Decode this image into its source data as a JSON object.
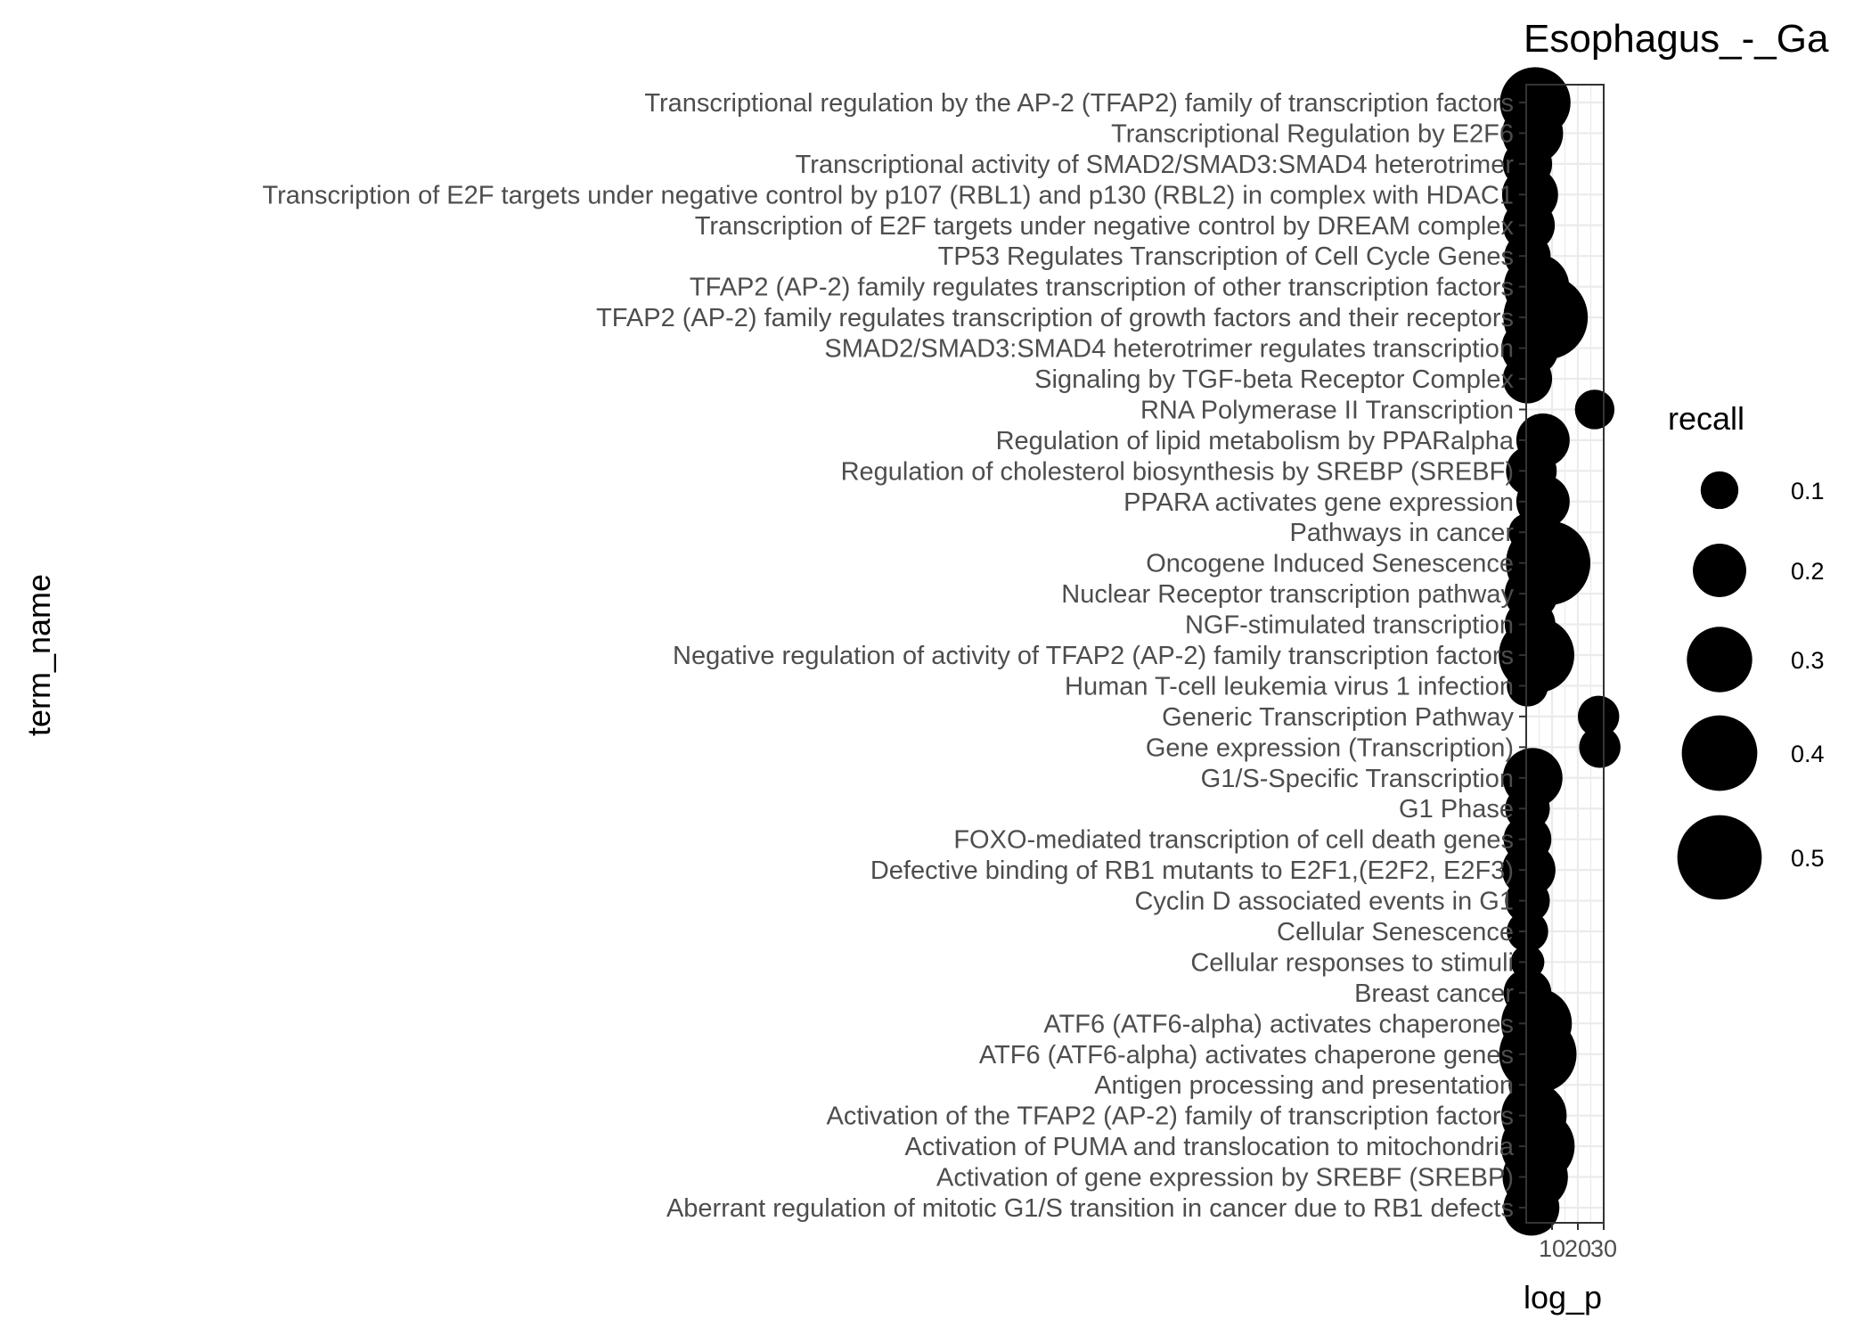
{
  "chart_data": {
    "type": "scatter",
    "title": "Esophagus_-_Ga",
    "xlabel": "log_p",
    "ylabel": "term_name",
    "xlim": [
      0,
      30
    ],
    "xticks": [
      10,
      20,
      30
    ],
    "grid": true,
    "legend": {
      "title": "recall",
      "position": "right",
      "entries": [
        {
          "label": "0.1",
          "value": 0.1
        },
        {
          "label": "0.2",
          "value": 0.2
        },
        {
          "label": "0.3",
          "value": 0.3
        },
        {
          "label": "0.4",
          "value": 0.4
        },
        {
          "label": "0.5",
          "value": 0.5
        }
      ]
    },
    "colors": {
      "point": "#000000",
      "grid": "#ebebeb",
      "panel_border": "#333333",
      "text": "#4d4d4d"
    },
    "points": [
      {
        "term": "Transcriptional regulation by the AP-2 (TFAP2) family of transcription factors",
        "log_p": 3.5,
        "recall": 0.35
      },
      {
        "term": "Transcriptional Regulation by E2F6",
        "log_p": 2.5,
        "recall": 0.26
      },
      {
        "term": "Transcriptional activity of SMAD2/SMAD3:SMAD4 heterotrimer",
        "log_p": 0.5,
        "recall": 0.17
      },
      {
        "term": "Transcription of E2F targets under negative control by p107 (RBL1) and p130 (RBL2) in complex with HDAC1",
        "log_p": 1.5,
        "recall": 0.22
      },
      {
        "term": "Transcription of E2F targets under negative control by DREAM complex",
        "log_p": 1.0,
        "recall": 0.19
      },
      {
        "term": "TP53 Regulates Transcription of Cell Cycle Genes",
        "log_p": 0.5,
        "recall": 0.15
      },
      {
        "term": "TFAP2 (AP-2) family regulates transcription of other transcription factors",
        "log_p": 4.0,
        "recall": 0.3
      },
      {
        "term": "TFAP2 (AP-2) family regulates transcription of growth factors and their receptors",
        "log_p": 7.5,
        "recall": 0.5
      },
      {
        "term": "SMAD2/SMAD3:SMAD4 heterotrimer regulates transcription",
        "log_p": 1.5,
        "recall": 0.23
      },
      {
        "term": "Signaling by TGF-beta Receptor Complex",
        "log_p": 0.5,
        "recall": 0.17
      },
      {
        "term": "RNA Polymerase II Transcription",
        "log_p": 26.5,
        "recall": 0.11
      },
      {
        "term": "Regulation of lipid metabolism by PPARalpha",
        "log_p": 6.5,
        "recall": 0.2
      },
      {
        "term": "Regulation of cholesterol biosynthesis by SREBP (SREBF)",
        "log_p": 2.0,
        "recall": 0.18
      },
      {
        "term": "PPARA activates gene expression",
        "log_p": 6.5,
        "recall": 0.2
      },
      {
        "term": "Pathways in cancer",
        "log_p": 0.5,
        "recall": 0.1
      },
      {
        "term": "Oncogene Induced Senescence",
        "log_p": 8.5,
        "recall": 0.5
      },
      {
        "term": "Nuclear Receptor transcription pathway",
        "log_p": 2.0,
        "recall": 0.2
      },
      {
        "term": "NGF-stimulated transcription",
        "log_p": 1.5,
        "recall": 0.18
      },
      {
        "term": "Negative regulation of activity of TFAP2 (AP-2) family transcription factors",
        "log_p": 4.0,
        "recall": 0.4
      },
      {
        "term": "Human T-cell leukemia virus 1 infection",
        "log_p": 0.5,
        "recall": 0.12
      },
      {
        "term": "Generic Transcription Pathway",
        "log_p": 28.0,
        "recall": 0.12
      },
      {
        "term": "Gene expression (Transcription)",
        "log_p": 28.5,
        "recall": 0.12
      },
      {
        "term": "G1/S-Specific Transcription",
        "log_p": 2.5,
        "recall": 0.25
      },
      {
        "term": "G1 Phase",
        "log_p": 0.5,
        "recall": 0.14
      },
      {
        "term": "FOXO-mediated transcription of cell death genes",
        "log_p": 0.5,
        "recall": 0.16
      },
      {
        "term": "Defective binding of RB1 mutants to E2F1,(E2F2, E2F3)",
        "log_p": 1.0,
        "recall": 0.2
      },
      {
        "term": "Cyclin D associated events in G1",
        "log_p": 0.5,
        "recall": 0.14
      },
      {
        "term": "Cellular Senescence",
        "log_p": 0.5,
        "recall": 0.12
      },
      {
        "term": "Cellular responses to stimuli",
        "log_p": 0.5,
        "recall": 0.08
      },
      {
        "term": "Breast cancer",
        "log_p": 0.5,
        "recall": 0.16
      },
      {
        "term": "ATF6 (ATF6-alpha) activates chaperones",
        "log_p": 4.0,
        "recall": 0.35
      },
      {
        "term": "ATF6 (ATF6-alpha) activates chaperone genes",
        "log_p": 4.5,
        "recall": 0.42
      },
      {
        "term": "Antigen processing and presentation",
        "log_p": 0.5,
        "recall": 0.1
      },
      {
        "term": "Activation of the TFAP2 (AP-2) family of transcription factors",
        "log_p": 3.0,
        "recall": 0.3
      },
      {
        "term": "Activation of PUMA and translocation to mitochondria",
        "log_p": 4.5,
        "recall": 0.38
      },
      {
        "term": "Activation of gene expression by SREBF (SREBP)",
        "log_p": 3.5,
        "recall": 0.3
      },
      {
        "term": "Aberrant regulation of mitotic G1/S transition in cancer due to RB1 defects",
        "log_p": 2.0,
        "recall": 0.22
      }
    ]
  }
}
